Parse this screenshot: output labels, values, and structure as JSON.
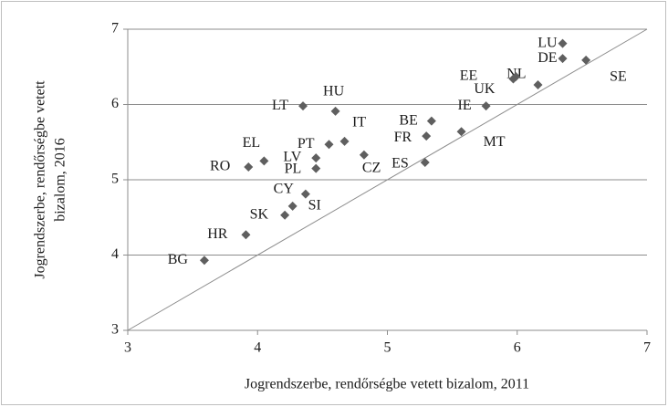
{
  "chart_data": {
    "type": "scatter",
    "xlabel": "Jogrendszerbe, rendőrségbe vetett  bizalom,  2011",
    "ylabel": [
      "Jogrendszerbe, rendőrségbe vetett",
      "bizalom,  2016"
    ],
    "series": [
      {
        "color": "#5f5f5f",
        "labels": [
          "LU",
          "DE",
          "SE",
          "NL",
          "EE",
          "UK",
          "IE",
          "MT",
          "BE",
          "FR",
          "ES",
          "CZ",
          "IT",
          "PT",
          "HU",
          "LT",
          "LV",
          "PL",
          "EL",
          "RO",
          "CY",
          "SI",
          "SK",
          "HR",
          "BG"
        ],
        "x": [
          6.35,
          6.35,
          6.53,
          6.16,
          5.99,
          5.97,
          5.76,
          5.57,
          5.34,
          5.3,
          5.29,
          4.82,
          4.67,
          4.55,
          4.6,
          4.35,
          4.45,
          4.45,
          4.05,
          3.93,
          4.37,
          4.27,
          4.21,
          3.91,
          3.59
        ],
        "values": [
          6.81,
          6.61,
          6.59,
          6.26,
          6.37,
          6.34,
          5.98,
          5.64,
          5.78,
          5.58,
          5.23,
          5.33,
          5.51,
          5.47,
          5.91,
          5.98,
          5.29,
          5.15,
          5.25,
          5.17,
          4.81,
          4.65,
          4.53,
          4.27,
          3.93
        ]
      }
    ],
    "xlim": [
      3,
      7
    ],
    "ylim": [
      3,
      7
    ],
    "xticks": [
      3,
      4,
      5,
      6,
      7
    ],
    "yticks": [
      3,
      4,
      5,
      6,
      7
    ],
    "grid": true
  }
}
